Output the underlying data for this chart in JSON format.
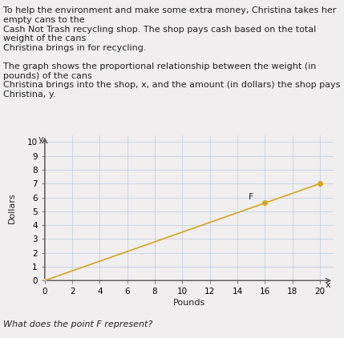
{
  "title_text": "To help the environment and make some extra money, Christina takes her empty cans to the\nCash Not Trash recycling shop. The shop pays cash based on the total weight of the cans\nChristina brings in for recycling.\n\nThe graph shows the proportional relationship between the weight (in pounds) of the cans\nChristina brings into the shop, x, and the amount (in dollars) the shop pays Christina, y.",
  "xlabel": "Pounds",
  "ylabel": "Dollars",
  "question": "What does the point F represent?",
  "xlim": [
    0,
    21
  ],
  "ylim": [
    0,
    10.5
  ],
  "xticks": [
    2,
    4,
    6,
    8,
    10,
    12,
    14,
    16,
    18,
    20
  ],
  "yticks": [
    1,
    2,
    3,
    4,
    5,
    6,
    7,
    8,
    9,
    10
  ],
  "line_x": [
    0,
    20
  ],
  "line_y": [
    0,
    7
  ],
  "line_color": "#D4A520",
  "point_F_x": 16,
  "point_F_y": 5.6,
  "point_end_x": 20,
  "point_end_y": 7,
  "point_color": "#D4A520",
  "bg_color": "#f0eeee",
  "grid_color": "#aec4e0",
  "text_color": "#222222",
  "font_size_text": 8,
  "font_size_axis": 7.5,
  "font_size_label": 8
}
